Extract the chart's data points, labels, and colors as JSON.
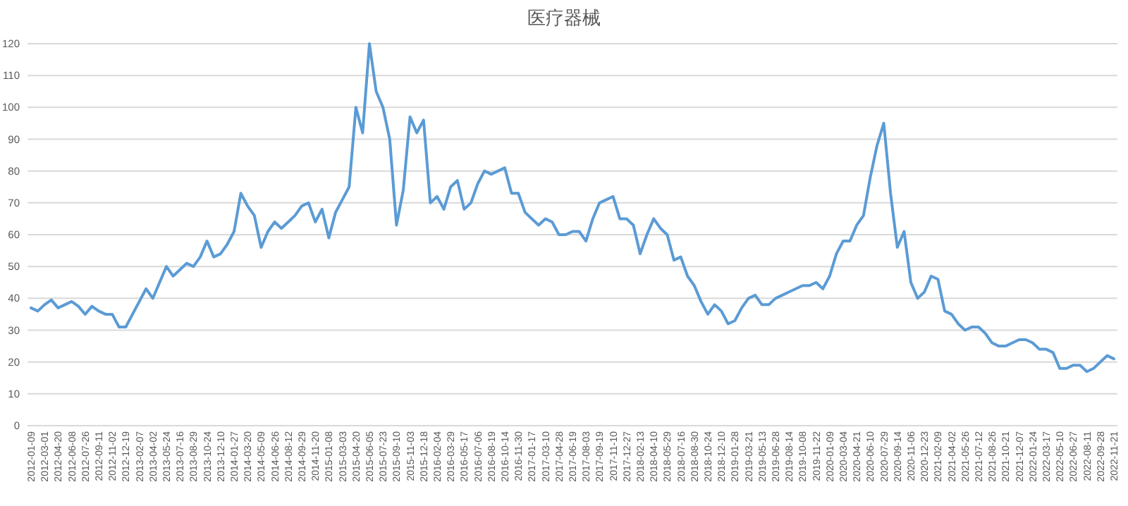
{
  "chart_data": {
    "type": "line",
    "title": "医疗器械",
    "categories": [
      "2012-01-09",
      null,
      "2012-03-01",
      null,
      "2012-04-20",
      null,
      "2012-06-08",
      null,
      "2012-07-26",
      null,
      "2012-09-11",
      null,
      "2012-11-02",
      null,
      "2012-12-19",
      null,
      "2013-02-07",
      null,
      "2013-04-02",
      null,
      "2013-05-24",
      null,
      "2013-07-16",
      null,
      "2013-08-29",
      null,
      "2013-10-24",
      null,
      "2013-12-10",
      null,
      "2014-01-27",
      null,
      "2014-03-20",
      null,
      "2014-05-09",
      null,
      "2014-06-26",
      null,
      "2014-08-12",
      null,
      "2014-09-29",
      null,
      "2014-11-20",
      null,
      "2015-01-08",
      null,
      "2015-03-03",
      null,
      "2015-04-20",
      null,
      "2015-06-05",
      null,
      "2015-07-23",
      null,
      "2015-09-10",
      null,
      "2015-11-03",
      null,
      "2015-12-18",
      null,
      "2016-02-04",
      null,
      "2016-03-29",
      null,
      "2016-05-17",
      null,
      "2016-07-06",
      null,
      "2016-08-19",
      null,
      "2016-10-14",
      null,
      "2016-11-30",
      null,
      "2017-01-17",
      null,
      "2017-03-10",
      null,
      "2017-04-28",
      null,
      "2017-06-19",
      null,
      "2017-08-03",
      null,
      "2017-09-19",
      null,
      "2017-11-10",
      null,
      "2017-12-27",
      null,
      "2018-02-13",
      null,
      "2018-04-10",
      null,
      "2018-05-29",
      null,
      "2018-07-16",
      null,
      "2018-08-30",
      null,
      "2018-10-24",
      null,
      "2018-12-10",
      null,
      "2019-01-28",
      null,
      "2019-03-21",
      null,
      "2019-05-13",
      null,
      "2019-06-28",
      null,
      "2019-08-14",
      null,
      "2019-10-08",
      null,
      "2019-11-22",
      null,
      "2020-01-09",
      null,
      "2020-03-04",
      null,
      "2020-04-21",
      null,
      "2020-06-10",
      null,
      "2020-07-29",
      null,
      "2020-09-14",
      null,
      "2020-11-06",
      null,
      "2020-12-23",
      null,
      "2021-02-09",
      null,
      "2021-04-02",
      null,
      "2021-05-26",
      null,
      "2021-07-12",
      null,
      "2021-08-26",
      null,
      "2021-10-21",
      null,
      "2021-12-07",
      null,
      "2022-01-24",
      null,
      "2022-03-17",
      null,
      "2022-05-10",
      null,
      "2022-06-27",
      null,
      "2022-08-11",
      null,
      "2022-09-28",
      null,
      "2022-11-21"
    ],
    "values": [
      37,
      36,
      38,
      39.5,
      37,
      38,
      39,
      37.5,
      35,
      37.5,
      36,
      35,
      35,
      31,
      31,
      35,
      39,
      43,
      40,
      45,
      50,
      47,
      49,
      51,
      50,
      53,
      58,
      53,
      54,
      57,
      61,
      73,
      69,
      66,
      56,
      61,
      64,
      62,
      64,
      66,
      69,
      70,
      64,
      68,
      59,
      67,
      71,
      75,
      100,
      92,
      120,
      105,
      100,
      90,
      63,
      74,
      97,
      92,
      96,
      70,
      72,
      68,
      75,
      77,
      68,
      70,
      76,
      80,
      79,
      80,
      81,
      73,
      73,
      67,
      65,
      63,
      65,
      64,
      60,
      60,
      61,
      61,
      58,
      65,
      70,
      71,
      72,
      65,
      65,
      63,
      54,
      60,
      65,
      62,
      60,
      52,
      53,
      47,
      44,
      39,
      35,
      38,
      36,
      32,
      33,
      37,
      40,
      41,
      38,
      38,
      40,
      41,
      42,
      43,
      44,
      44,
      45,
      43,
      47,
      54,
      58,
      58,
      63,
      66,
      78,
      88,
      95,
      73,
      56,
      61,
      45,
      40,
      42,
      47,
      46,
      36,
      35,
      32,
      30,
      31,
      31,
      29,
      26,
      25,
      25,
      26,
      27,
      27,
      26,
      24,
      24,
      23,
      18,
      18,
      19,
      19,
      17,
      18,
      20,
      22,
      21
    ],
    "color": "#5b9bd5",
    "ylim": [
      0,
      120
    ],
    "yticks": [
      0,
      10,
      20,
      30,
      40,
      50,
      60,
      70,
      80,
      90,
      100,
      110,
      120
    ],
    "grid": "y",
    "marker": "none",
    "line_style": "solid"
  }
}
